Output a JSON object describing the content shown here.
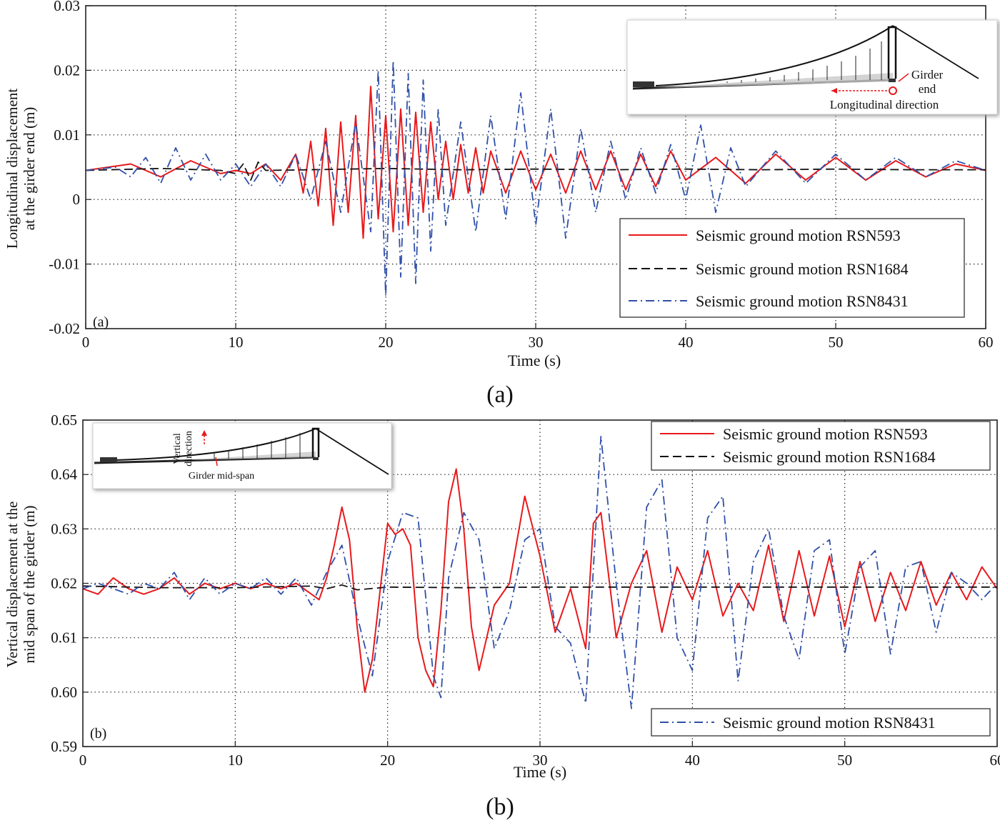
{
  "chart_data": [
    {
      "panel": "a",
      "type": "line",
      "panel_label": "(a)",
      "caption": "(a)",
      "xlabel": "Time (s)",
      "ylabel": [
        "Longitudinal displacement",
        "at the girder end (m)"
      ],
      "xlim": [
        0,
        60
      ],
      "ylim": [
        -0.02,
        0.03
      ],
      "xticks": [
        0,
        10,
        20,
        30,
        40,
        50,
        60
      ],
      "xtick_labels": [
        "0",
        "10",
        "20",
        "30",
        "40",
        "50",
        "60"
      ],
      "yticks": [
        -0.02,
        -0.01,
        0,
        0.01,
        0.02,
        0.03
      ],
      "ytick_labels": [
        "-0.02",
        "-0.01",
        "0",
        "0.01",
        "0.02",
        "0.03"
      ],
      "grid": true,
      "legend_position": "lower-right",
      "inset": {
        "labels": [
          "Girder",
          "end",
          "Longitudinal direction"
        ],
        "position": "top-right"
      },
      "series": [
        {
          "name": "Seismic ground motion RSN593",
          "color": "#e8191c",
          "style": "solid",
          "x": [
            0,
            3,
            5,
            7,
            9,
            10,
            11,
            12,
            13,
            14,
            14.5,
            15,
            15.5,
            16,
            16.5,
            17,
            17.5,
            18,
            18.5,
            19,
            19.5,
            20,
            20.5,
            21,
            21.5,
            22,
            22.5,
            23,
            23.5,
            24,
            24.5,
            25,
            25.5,
            26,
            26.5,
            27,
            28,
            29,
            30,
            31,
            32,
            33,
            34,
            35,
            36,
            37,
            38,
            39,
            40,
            42,
            44,
            46,
            48,
            50,
            52,
            54,
            56,
            58,
            60
          ],
          "y": [
            0.0045,
            0.0055,
            0.0035,
            0.006,
            0.004,
            0.0045,
            0.004,
            0.0055,
            0.003,
            0.007,
            0.001,
            0.009,
            -0.001,
            0.011,
            -0.004,
            0.012,
            -0.002,
            0.013,
            -0.006,
            0.0175,
            -0.003,
            0.013,
            -0.005,
            0.014,
            -0.004,
            0.0135,
            -0.002,
            0.012,
            0.0,
            0.009,
            0.0,
            0.0085,
            0.001,
            0.008,
            0.001,
            0.0075,
            0.001,
            0.0075,
            0.0015,
            0.007,
            0.001,
            0.0075,
            0.0015,
            0.0075,
            0.0015,
            0.007,
            0.002,
            0.0075,
            0.003,
            0.0065,
            0.0025,
            0.007,
            0.003,
            0.0065,
            0.003,
            0.006,
            0.0035,
            0.0055,
            0.0045
          ]
        },
        {
          "name": "Seismic ground motion RSN1684",
          "color": "#111111",
          "style": "dashed",
          "x": [
            0,
            5,
            9,
            10,
            10.5,
            11,
            11.5,
            12,
            15,
            20,
            25,
            30,
            35,
            40,
            45,
            50,
            55,
            60
          ],
          "y": [
            0.0045,
            0.0048,
            0.0045,
            0.004,
            0.0055,
            0.003,
            0.0058,
            0.0045,
            0.0046,
            0.0048,
            0.0046,
            0.0047,
            0.0046,
            0.0047,
            0.0046,
            0.0047,
            0.0046,
            0.0046
          ]
        },
        {
          "name": "Seismic ground motion RSN8431",
          "color": "#3050a8",
          "style": "dashdot",
          "x": [
            0,
            2,
            3,
            4,
            5,
            6,
            7,
            8,
            9,
            10,
            11,
            12,
            13,
            14,
            15,
            16,
            17,
            18,
            19,
            19.5,
            20,
            20.5,
            21,
            21.5,
            22,
            22.5,
            23,
            23.5,
            24,
            25,
            26,
            27,
            28,
            29,
            30,
            31,
            32,
            33,
            34,
            35,
            36,
            37,
            38,
            39,
            40,
            41,
            42,
            43,
            44,
            46,
            48,
            50,
            52,
            54,
            56,
            58,
            60
          ],
          "y": [
            0.0045,
            0.005,
            0.0035,
            0.0065,
            0.0025,
            0.008,
            0.003,
            0.007,
            0.003,
            0.0055,
            0.002,
            0.0055,
            0.002,
            0.007,
            0.0,
            0.009,
            -0.002,
            0.012,
            -0.005,
            0.02,
            -0.015,
            0.0215,
            -0.012,
            0.0195,
            -0.013,
            0.0185,
            -0.008,
            0.014,
            -0.004,
            0.012,
            -0.005,
            0.013,
            -0.003,
            0.0165,
            -0.004,
            0.014,
            -0.006,
            0.011,
            -0.002,
            0.009,
            0.0,
            0.008,
            0.001,
            0.0085,
            0.0,
            0.0115,
            -0.002,
            0.008,
            0.002,
            0.0075,
            0.0025,
            0.007,
            0.003,
            0.0065,
            0.0035,
            0.006,
            0.0045
          ]
        }
      ]
    },
    {
      "panel": "b",
      "type": "line",
      "panel_label": "(b)",
      "caption": "(b)",
      "xlabel": "Time (s)",
      "ylabel": [
        "Vertical displacement at the",
        "mid span of the girder (m)"
      ],
      "xlim": [
        0,
        60
      ],
      "ylim": [
        0.59,
        0.65
      ],
      "xticks": [
        0,
        10,
        20,
        30,
        40,
        50,
        60
      ],
      "xtick_labels": [
        "0",
        "10",
        "20",
        "30",
        "40",
        "50",
        "60"
      ],
      "yticks": [
        0.59,
        0.6,
        0.61,
        0.62,
        0.63,
        0.64,
        0.65
      ],
      "ytick_labels": [
        "0.59",
        "0.60",
        "0.61",
        "0.62",
        "0.63",
        "0.64",
        "0.65"
      ],
      "grid": true,
      "legend_position": "top-right and bottom-right",
      "inset": {
        "labels": [
          "Vertical",
          "direction",
          "Girder mid-span"
        ],
        "position": "top-left"
      },
      "series": [
        {
          "name": "Seismic ground motion RSN593",
          "color": "#e8191c",
          "style": "solid",
          "x": [
            0,
            1,
            2,
            3,
            4,
            5,
            6,
            7,
            8,
            9,
            10,
            11,
            12,
            13,
            14,
            15,
            15.5,
            16,
            16.5,
            17,
            17.5,
            18,
            18.5,
            19,
            20,
            20.5,
            21,
            21.5,
            22,
            22.5,
            23,
            23.5,
            24,
            24.5,
            25,
            25.5,
            26,
            27,
            28,
            29,
            30,
            31,
            32,
            33,
            33.5,
            34,
            35,
            36,
            37,
            38,
            39,
            40,
            41,
            42,
            43,
            44,
            45,
            46,
            47,
            48,
            49,
            50,
            51,
            52,
            53,
            54,
            55,
            56,
            57,
            58,
            59,
            60
          ],
          "y": [
            0.619,
            0.618,
            0.621,
            0.619,
            0.618,
            0.619,
            0.621,
            0.618,
            0.62,
            0.619,
            0.62,
            0.619,
            0.62,
            0.619,
            0.62,
            0.618,
            0.617,
            0.621,
            0.627,
            0.634,
            0.628,
            0.612,
            0.6,
            0.606,
            0.631,
            0.629,
            0.63,
            0.627,
            0.61,
            0.604,
            0.601,
            0.615,
            0.635,
            0.641,
            0.63,
            0.612,
            0.604,
            0.616,
            0.62,
            0.636,
            0.625,
            0.611,
            0.619,
            0.608,
            0.631,
            0.633,
            0.61,
            0.62,
            0.626,
            0.611,
            0.623,
            0.617,
            0.626,
            0.614,
            0.62,
            0.615,
            0.627,
            0.613,
            0.626,
            0.614,
            0.625,
            0.612,
            0.624,
            0.613,
            0.622,
            0.615,
            0.624,
            0.616,
            0.622,
            0.617,
            0.623,
            0.619
          ]
        },
        {
          "name": "Seismic ground motion RSN1684",
          "color": "#111111",
          "style": "dashed",
          "x": [
            0,
            5,
            10,
            15,
            16,
            17,
            18,
            20,
            25,
            30,
            35,
            40,
            45,
            50,
            55,
            60
          ],
          "y": [
            0.6195,
            0.6192,
            0.6192,
            0.6195,
            0.619,
            0.6197,
            0.6188,
            0.6193,
            0.6192,
            0.6193,
            0.6193,
            0.6193,
            0.6193,
            0.6193,
            0.6193,
            0.6193
          ]
        },
        {
          "name": "Seismic ground motion RSN8431",
          "color": "#3050a8",
          "style": "dashdot",
          "x": [
            0,
            1,
            2,
            3,
            4,
            5,
            6,
            7,
            8,
            9,
            10,
            11,
            12,
            13,
            14,
            15,
            16,
            17,
            18,
            19,
            20,
            21,
            22,
            23,
            23.5,
            24,
            25,
            26,
            27,
            28,
            29,
            30,
            31,
            32,
            33,
            34,
            35,
            36,
            37,
            38,
            39,
            40,
            41,
            42,
            43,
            44,
            45,
            46,
            47,
            48,
            49,
            50,
            51,
            52,
            53,
            54,
            55,
            56,
            57,
            58,
            59,
            60
          ],
          "y": [
            0.619,
            0.62,
            0.619,
            0.618,
            0.62,
            0.619,
            0.622,
            0.617,
            0.621,
            0.618,
            0.62,
            0.619,
            0.621,
            0.618,
            0.621,
            0.616,
            0.622,
            0.627,
            0.614,
            0.603,
            0.624,
            0.633,
            0.632,
            0.603,
            0.599,
            0.621,
            0.633,
            0.628,
            0.608,
            0.615,
            0.628,
            0.63,
            0.612,
            0.609,
            0.598,
            0.647,
            0.62,
            0.597,
            0.634,
            0.639,
            0.61,
            0.604,
            0.632,
            0.636,
            0.602,
            0.624,
            0.63,
            0.614,
            0.606,
            0.626,
            0.628,
            0.607,
            0.623,
            0.626,
            0.607,
            0.623,
            0.624,
            0.611,
            0.622,
            0.62,
            0.617,
            0.62
          ]
        }
      ]
    }
  ]
}
